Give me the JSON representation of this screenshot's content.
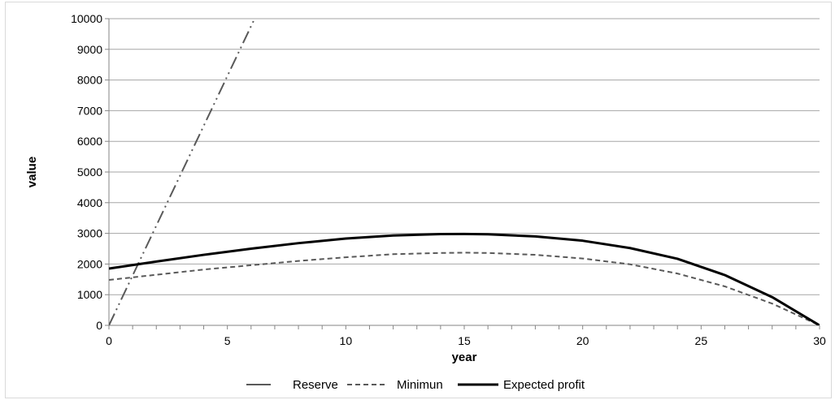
{
  "chart_data": {
    "type": "line",
    "title": "",
    "xlabel": "year",
    "ylabel": "value",
    "xlim": [
      0,
      30
    ],
    "ylim": [
      0,
      10000
    ],
    "x_ticks": [
      "0",
      "5",
      "10",
      "15",
      "20",
      "25",
      "30"
    ],
    "y_ticks": [
      "0",
      "1000",
      "2000",
      "3000",
      "4000",
      "5000",
      "6000",
      "7000",
      "8000",
      "9000",
      "10000"
    ],
    "grid": "horizontal",
    "legend_position": "bottom",
    "series": [
      {
        "name": "Reserve",
        "style": "dash-dot-dot",
        "color": "#595959",
        "x": [
          0,
          6.15
        ],
        "y": [
          0,
          10000
        ]
      },
      {
        "name": "Minimun",
        "style": "dashed",
        "color": "#595959",
        "x": [
          0,
          2,
          4,
          6,
          8,
          10,
          12,
          14,
          15,
          16,
          18,
          20,
          22,
          24,
          26,
          28,
          30
        ],
        "y": [
          1480,
          1650,
          1820,
          1960,
          2100,
          2220,
          2320,
          2360,
          2370,
          2360,
          2300,
          2180,
          1990,
          1690,
          1270,
          710,
          0
        ]
      },
      {
        "name": "Expected profit",
        "style": "solid",
        "color": "#000000",
        "x": [
          0,
          2,
          4,
          6,
          8,
          10,
          12,
          14,
          15,
          16,
          18,
          20,
          22,
          24,
          26,
          28,
          30
        ],
        "y": [
          1850,
          2080,
          2300,
          2500,
          2680,
          2830,
          2930,
          2975,
          2980,
          2970,
          2900,
          2760,
          2520,
          2170,
          1640,
          920,
          0
        ]
      }
    ]
  }
}
